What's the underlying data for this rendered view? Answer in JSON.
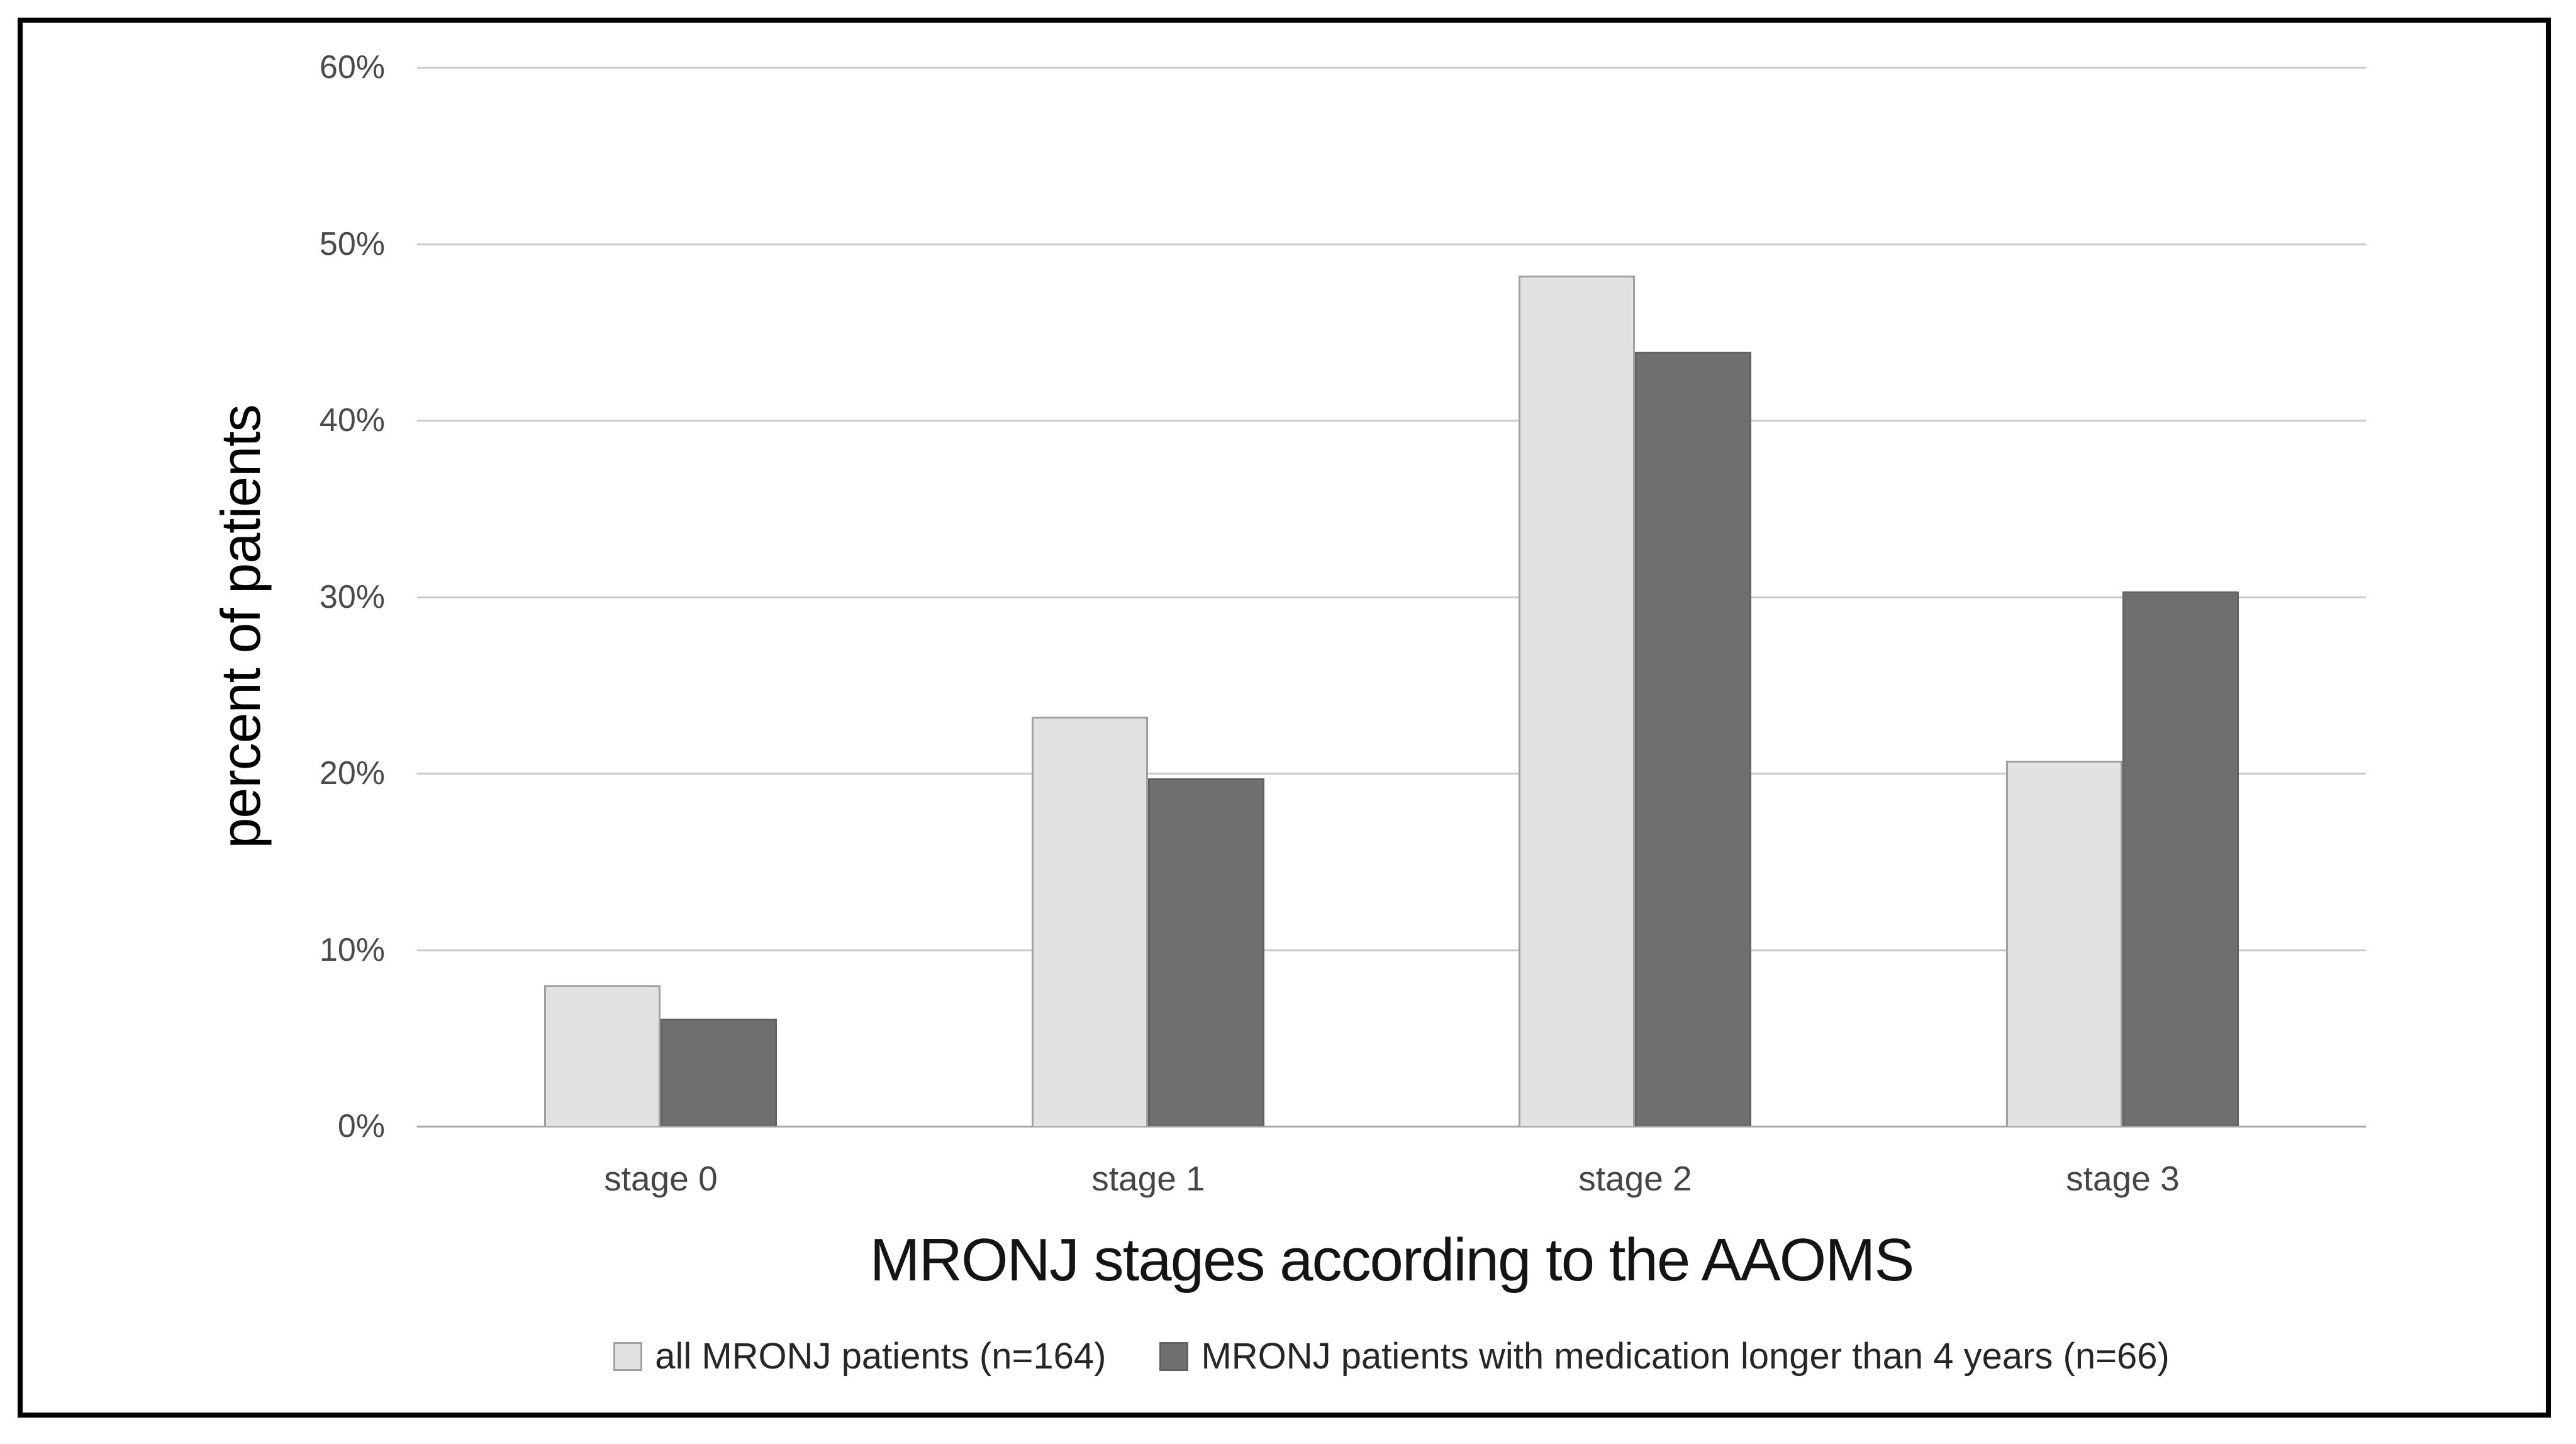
{
  "figure": {
    "background": "#ffffff",
    "frame_border_color": "#000000"
  },
  "chart_data": {
    "type": "bar",
    "title": "MRONJ stages according to the AAOMS",
    "xlabel": "MRONJ stages according to the AAOMS",
    "ylabel": "percent of patients",
    "categories": [
      "stage 0",
      "stage 1",
      "stage 2",
      "stage 3"
    ],
    "series": [
      {
        "name": "all MRONJ patients (n=164)",
        "values": [
          8.0,
          23.2,
          48.2,
          20.7
        ],
        "fill": "#e2e2e2",
        "border": "#a0a0a0"
      },
      {
        "name": "MRONJ patients with medication longer than 4 years (n=66)",
        "values": [
          6.1,
          19.7,
          43.9,
          30.3
        ],
        "fill": "#6f6f6f",
        "border": "#626262"
      }
    ],
    "unit": "%",
    "y_ticks": [
      "0%",
      "10%",
      "20%",
      "30%",
      "40%",
      "50%",
      "60%"
    ],
    "ylim": [
      0,
      60
    ],
    "grid": true,
    "gridline_color": "#c9c9c9",
    "axis_line_color": "#a8a8a8",
    "tick_label_color": "#4a4a4a",
    "legend_position": "bottom"
  }
}
